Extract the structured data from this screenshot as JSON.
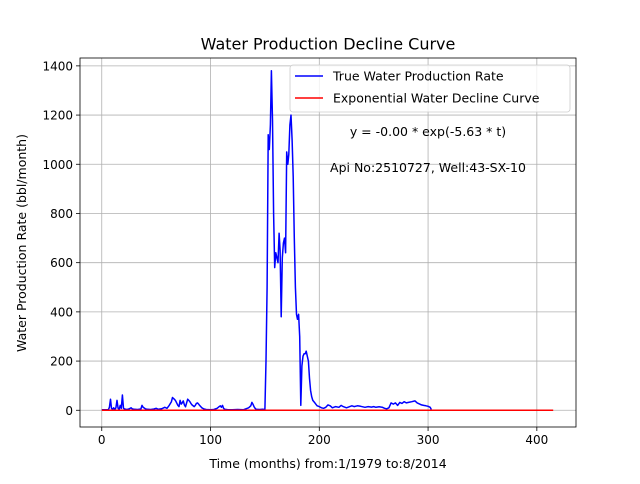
{
  "chart_data": {
    "type": "line",
    "title": "Water Production Decline Curve",
    "xlabel": "Time (months) from:1/1979 to:8/2014",
    "ylabel": "Water Production Rate (bbl/month)",
    "xlim": [
      -20,
      436
    ],
    "ylim": [
      -68,
      1432
    ],
    "xticks": [
      0,
      100,
      200,
      300,
      400
    ],
    "yticks": [
      0,
      200,
      400,
      600,
      800,
      1000,
      1200,
      1400
    ],
    "grid": true,
    "legend_position": "top-right",
    "annotations": [
      "y = -0.00 * exp(-5.63 * t)",
      "Api No:2510727, Well:43-SX-10"
    ],
    "series": [
      {
        "name": "True Water Production Rate",
        "color": "#0000ff",
        "points": [
          [
            0,
            2
          ],
          [
            6,
            2
          ],
          [
            7,
            12
          ],
          [
            8,
            45
          ],
          [
            9,
            8
          ],
          [
            10,
            4
          ],
          [
            11,
            10
          ],
          [
            12,
            3
          ],
          [
            13,
            10
          ],
          [
            14,
            40
          ],
          [
            15,
            8
          ],
          [
            16,
            4
          ],
          [
            17,
            20
          ],
          [
            18,
            8
          ],
          [
            19,
            62
          ],
          [
            20,
            8
          ],
          [
            21,
            5
          ],
          [
            23,
            3
          ],
          [
            25,
            5
          ],
          [
            27,
            10
          ],
          [
            28,
            6
          ],
          [
            30,
            4
          ],
          [
            33,
            3
          ],
          [
            36,
            5
          ],
          [
            37,
            20
          ],
          [
            38,
            12
          ],
          [
            40,
            6
          ],
          [
            42,
            4
          ],
          [
            45,
            3
          ],
          [
            48,
            5
          ],
          [
            50,
            8
          ],
          [
            52,
            4
          ],
          [
            55,
            6
          ],
          [
            58,
            12
          ],
          [
            60,
            8
          ],
          [
            62,
            20
          ],
          [
            64,
            35
          ],
          [
            65,
            52
          ],
          [
            66,
            48
          ],
          [
            67,
            44
          ],
          [
            68,
            38
          ],
          [
            70,
            20
          ],
          [
            71,
            15
          ],
          [
            72,
            40
          ],
          [
            73,
            25
          ],
          [
            74,
            30
          ],
          [
            75,
            38
          ],
          [
            76,
            22
          ],
          [
            77,
            14
          ],
          [
            78,
            30
          ],
          [
            79,
            45
          ],
          [
            80,
            40
          ],
          [
            81,
            35
          ],
          [
            82,
            28
          ],
          [
            83,
            22
          ],
          [
            85,
            15
          ],
          [
            86,
            20
          ],
          [
            87,
            28
          ],
          [
            88,
            30
          ],
          [
            89,
            25
          ],
          [
            90,
            20
          ],
          [
            92,
            10
          ],
          [
            94,
            5
          ],
          [
            96,
            3
          ],
          [
            100,
            2
          ],
          [
            103,
            3
          ],
          [
            106,
            8
          ],
          [
            108,
            15
          ],
          [
            109,
            18
          ],
          [
            110,
            12
          ],
          [
            111,
            20
          ],
          [
            112,
            8
          ],
          [
            113,
            4
          ],
          [
            116,
            2
          ],
          [
            120,
            2
          ],
          [
            125,
            3
          ],
          [
            130,
            2
          ],
          [
            135,
            10
          ],
          [
            137,
            18
          ],
          [
            138,
            32
          ],
          [
            139,
            25
          ],
          [
            140,
            15
          ],
          [
            141,
            8
          ],
          [
            142,
            4
          ],
          [
            145,
            3
          ],
          [
            148,
            4
          ],
          [
            150,
            3
          ],
          [
            151,
            200
          ],
          [
            152,
            500
          ],
          [
            153,
            1120
          ],
          [
            154,
            1060
          ],
          [
            155,
            1160
          ],
          [
            156,
            1380
          ],
          [
            157,
            1180
          ],
          [
            158,
            800
          ],
          [
            159,
            580
          ],
          [
            160,
            640
          ],
          [
            161,
            620
          ],
          [
            162,
            600
          ],
          [
            163,
            720
          ],
          [
            164,
            650
          ],
          [
            165,
            380
          ],
          [
            166,
            620
          ],
          [
            167,
            680
          ],
          [
            168,
            700
          ],
          [
            169,
            640
          ],
          [
            170,
            1050
          ],
          [
            171,
            1000
          ],
          [
            172,
            1040
          ],
          [
            173,
            1160
          ],
          [
            174,
            1200
          ],
          [
            175,
            1100
          ],
          [
            176,
            950
          ],
          [
            177,
            700
          ],
          [
            178,
            500
          ],
          [
            179,
            390
          ],
          [
            180,
            370
          ],
          [
            181,
            390
          ],
          [
            182,
            300
          ],
          [
            183,
            20
          ],
          [
            184,
            180
          ],
          [
            185,
            220
          ],
          [
            186,
            230
          ],
          [
            187,
            230
          ],
          [
            188,
            240
          ],
          [
            189,
            220
          ],
          [
            190,
            200
          ],
          [
            191,
            130
          ],
          [
            192,
            80
          ],
          [
            193,
            55
          ],
          [
            194,
            40
          ],
          [
            196,
            30
          ],
          [
            198,
            18
          ],
          [
            200,
            15
          ],
          [
            202,
            10
          ],
          [
            204,
            8
          ],
          [
            206,
            12
          ],
          [
            208,
            22
          ],
          [
            210,
            18
          ],
          [
            212,
            10
          ],
          [
            215,
            15
          ],
          [
            218,
            12
          ],
          [
            220,
            20
          ],
          [
            222,
            15
          ],
          [
            225,
            10
          ],
          [
            228,
            15
          ],
          [
            230,
            18
          ],
          [
            232,
            15
          ],
          [
            235,
            18
          ],
          [
            238,
            16
          ],
          [
            240,
            14
          ],
          [
            242,
            12
          ],
          [
            245,
            15
          ],
          [
            248,
            13
          ],
          [
            250,
            15
          ],
          [
            252,
            12
          ],
          [
            255,
            14
          ],
          [
            258,
            12
          ],
          [
            260,
            8
          ],
          [
            262,
            6
          ],
          [
            264,
            10
          ],
          [
            266,
            30
          ],
          [
            268,
            25
          ],
          [
            270,
            30
          ],
          [
            272,
            20
          ],
          [
            274,
            32
          ],
          [
            276,
            28
          ],
          [
            278,
            35
          ],
          [
            280,
            30
          ],
          [
            282,
            32
          ],
          [
            285,
            35
          ],
          [
            288,
            38
          ],
          [
            290,
            30
          ],
          [
            292,
            26
          ],
          [
            294,
            22
          ],
          [
            296,
            20
          ],
          [
            298,
            18
          ],
          [
            300,
            16
          ],
          [
            302,
            12
          ],
          [
            303,
            3
          ]
        ]
      },
      {
        "name": "Exponential Water Decline Curve",
        "color": "#ff0000",
        "points": [
          [
            0,
            0
          ],
          [
            415,
            0
          ]
        ]
      }
    ]
  }
}
